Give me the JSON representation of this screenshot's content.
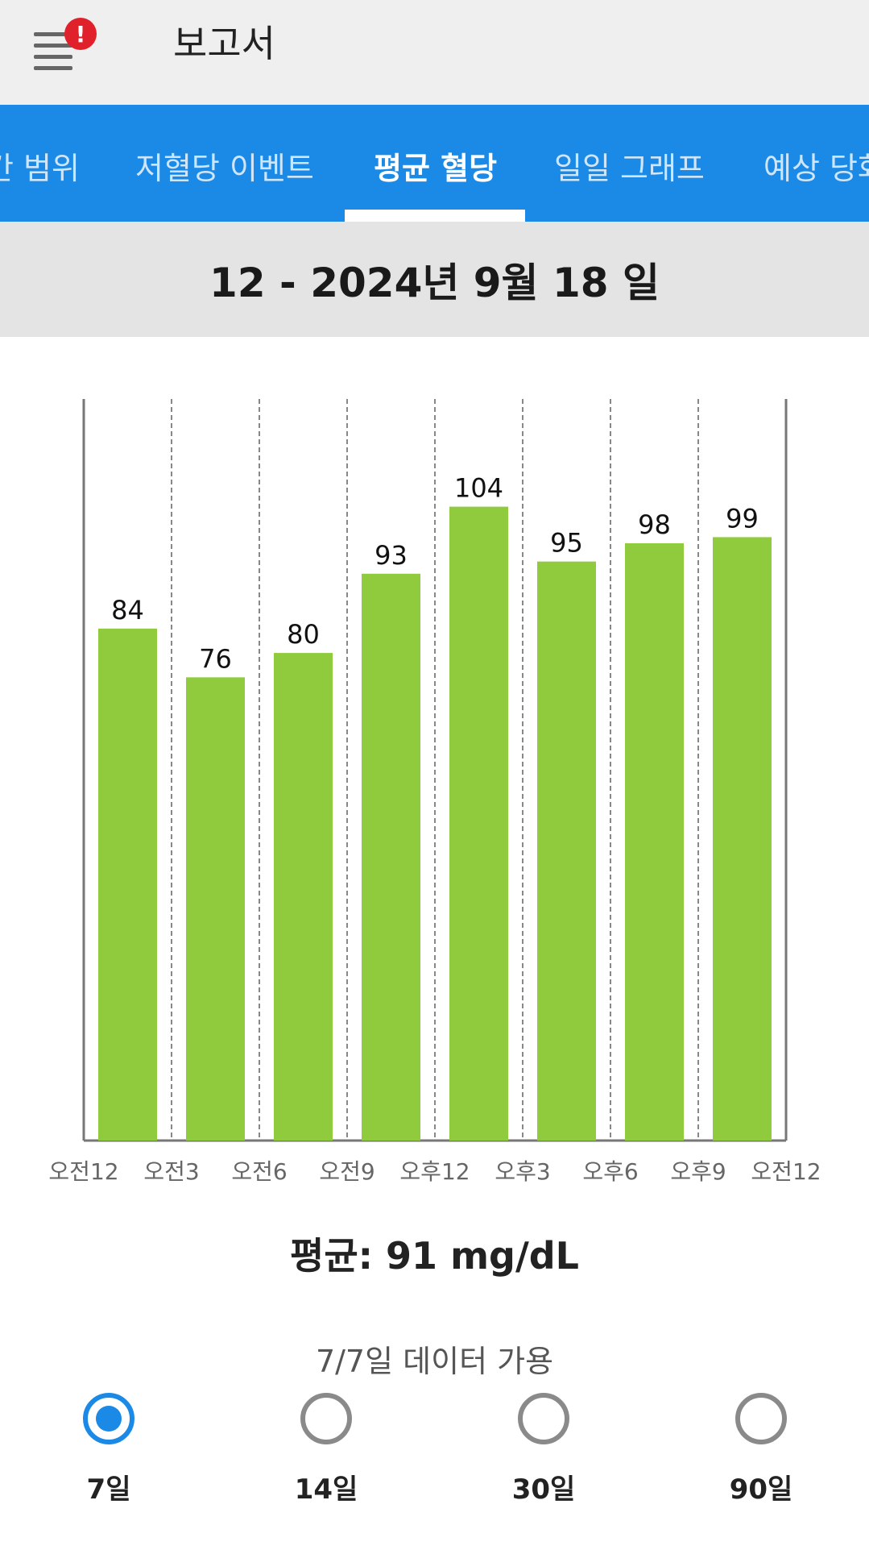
{
  "header": {
    "title": "보고서",
    "alert_glyph": "!",
    "menu_icon": "hamburger-icon"
  },
  "tabs": [
    {
      "label": "간 범위",
      "active": false
    },
    {
      "label": "저혈당 이벤트",
      "active": false
    },
    {
      "label": "평균 혈당",
      "active": true
    },
    {
      "label": "일일 그래프",
      "active": false
    },
    {
      "label": "예상 당화",
      "active": false
    }
  ],
  "date_range": "12 - 2024년 9월 18 일",
  "chart_data": {
    "type": "bar",
    "categories": [
      "오전12",
      "오전3",
      "오전6",
      "오전9",
      "오후12",
      "오후3",
      "오후6",
      "오후9"
    ],
    "x_tick_labels": [
      "오전12",
      "오전3",
      "오전6",
      "오전9",
      "오후12",
      "오후3",
      "오후6",
      "오후9",
      "오전12"
    ],
    "values": [
      84,
      76,
      80,
      93,
      104,
      95,
      98,
      99
    ],
    "ylim": [
      0,
      105
    ],
    "data_labels": true,
    "grid": "vertical-dashed",
    "bar_color": "#8fcb3c"
  },
  "summary": {
    "average": "평균: 91 mg/dL",
    "availability": "7/7일 데이터 가용"
  },
  "period_options": [
    {
      "label": "7일",
      "selected": true
    },
    {
      "label": "14일",
      "selected": false
    },
    {
      "label": "30일",
      "selected": false
    },
    {
      "label": "90일",
      "selected": false
    }
  ],
  "colors": {
    "accent": "#1a8ae6",
    "bar": "#8fcb3c",
    "alert": "#e0202a"
  }
}
